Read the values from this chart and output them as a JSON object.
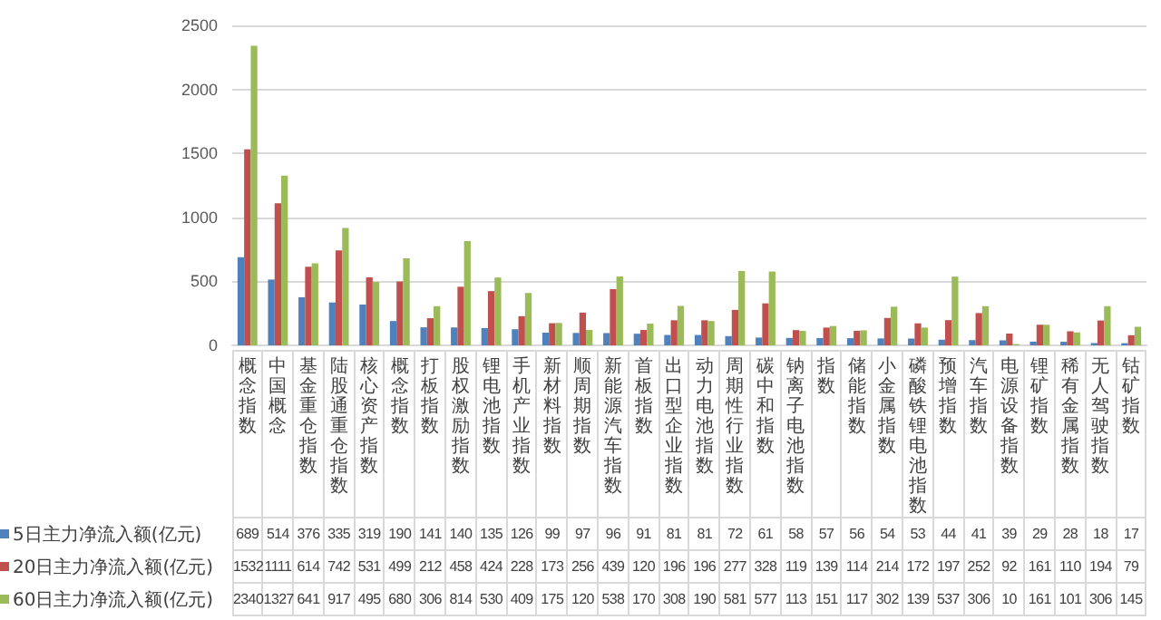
{
  "chart_data": {
    "type": "bar",
    "categories": [
      "概念指数",
      "中国概念",
      "基金重仓指数",
      "陆股通重仓指数",
      "核心资产指数",
      "概念指数",
      "打板指数",
      "股权激励指数",
      "锂电池指数",
      "手机产业指数",
      "新材料指数",
      "顺周期指数",
      "新能源汽车指数",
      "首板指数",
      "出口型企业指数",
      "动力电池指数",
      "周期性行业指数",
      "碳中和指数",
      "钠离子电池指数",
      "指数",
      "储能指数",
      "小金属指数",
      "磷酸铁锂电池指数",
      "预增指数",
      "汽车指数",
      "电源设备指数",
      "锂矿指数",
      "稀有金属指数",
      "无人驾驶指数",
      "钴矿指数"
    ],
    "series": [
      {
        "name": "5日主力净流入额(亿元)",
        "color": "#4f81bd",
        "values": [
          689,
          514,
          376,
          335,
          319,
          190,
          141,
          140,
          135,
          126,
          99,
          97,
          96,
          91,
          81,
          81,
          72,
          61,
          58,
          57,
          56,
          54,
          53,
          44,
          41,
          39,
          29,
          28,
          18,
          17
        ]
      },
      {
        "name": "20日主力净流入额(亿元)",
        "color": "#c0504d",
        "values": [
          1532,
          1111,
          614,
          742,
          531,
          499,
          212,
          458,
          424,
          228,
          173,
          256,
          439,
          120,
          196,
          196,
          277,
          328,
          119,
          139,
          114,
          214,
          172,
          197,
          252,
          92,
          161,
          110,
          194,
          79
        ]
      },
      {
        "name": "60日主力净流入额(亿元)",
        "color": "#9bbb59",
        "values": [
          2340,
          1327,
          641,
          917,
          495,
          680,
          306,
          814,
          530,
          409,
          175,
          120,
          538,
          170,
          308,
          190,
          581,
          577,
          113,
          151,
          117,
          302,
          139,
          537,
          306,
          10,
          161,
          101,
          306,
          145
        ]
      }
    ],
    "ylim": [
      0,
      2500
    ],
    "yticks": [
      0,
      500,
      1000,
      1500,
      2000,
      2500
    ],
    "grid": "y",
    "legend": "bottom",
    "data_labels": true
  }
}
